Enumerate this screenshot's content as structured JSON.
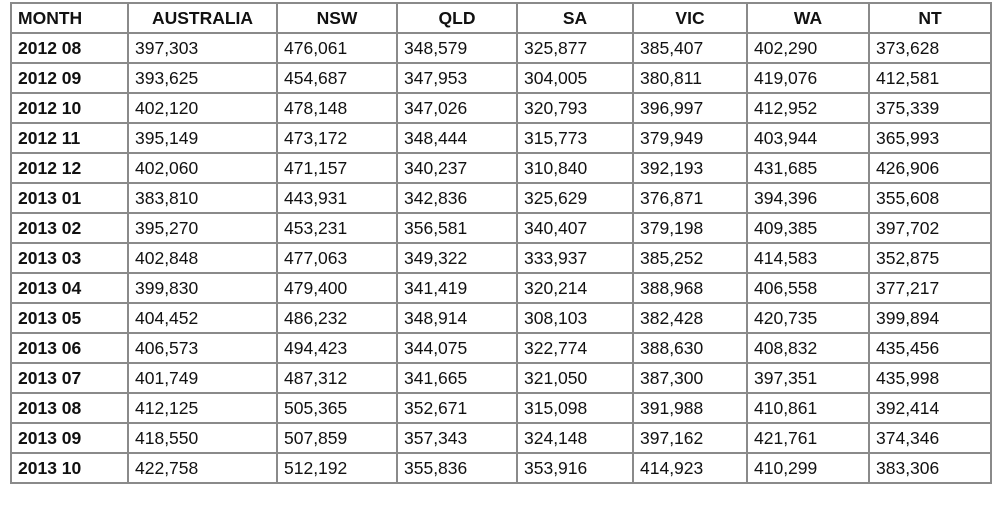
{
  "table": {
    "header": [
      "MONTH",
      "AUSTRALIA",
      "NSW",
      "QLD",
      "SA",
      "VIC",
      "WA",
      "NT"
    ],
    "rows": [
      [
        "2012 08",
        "397,303",
        "476,061",
        "348,579",
        "325,877",
        "385,407",
        "402,290",
        "373,628"
      ],
      [
        "2012 09",
        "393,625",
        "454,687",
        "347,953",
        "304,005",
        "380,811",
        "419,076",
        "412,581"
      ],
      [
        "2012 10",
        "402,120",
        "478,148",
        "347,026",
        "320,793",
        "396,997",
        "412,952",
        "375,339"
      ],
      [
        "2012 11",
        "395,149",
        "473,172",
        "348,444",
        "315,773",
        "379,949",
        "403,944",
        "365,993"
      ],
      [
        "2012 12",
        "402,060",
        "471,157",
        "340,237",
        "310,840",
        "392,193",
        "431,685",
        "426,906"
      ],
      [
        "2013 01",
        "383,810",
        "443,931",
        "342,836",
        "325,629",
        "376,871",
        "394,396",
        "355,608"
      ],
      [
        "2013 02",
        "395,270",
        "453,231",
        "356,581",
        "340,407",
        "379,198",
        "409,385",
        "397,702"
      ],
      [
        "2013 03",
        "402,848",
        "477,063",
        "349,322",
        "333,937",
        "385,252",
        "414,583",
        "352,875"
      ],
      [
        "2013 04",
        "399,830",
        "479,400",
        "341,419",
        "320,214",
        "388,968",
        "406,558",
        "377,217"
      ],
      [
        "2013 05",
        "404,452",
        "486,232",
        "348,914",
        "308,103",
        "382,428",
        "420,735",
        "399,894"
      ],
      [
        "2013 06",
        "406,573",
        "494,423",
        "344,075",
        "322,774",
        "388,630",
        "408,832",
        "435,456"
      ],
      [
        "2013 07",
        "401,749",
        "487,312",
        "341,665",
        "321,050",
        "387,300",
        "397,351",
        "435,998"
      ],
      [
        "2013 08",
        "412,125",
        "505,365",
        "352,671",
        "315,098",
        "391,988",
        "410,861",
        "392,414"
      ],
      [
        "2013 09",
        "418,550",
        "507,859",
        "357,343",
        "324,148",
        "397,162",
        "421,761",
        "374,346"
      ],
      [
        "2013 10",
        "422,758",
        "512,192",
        "355,836",
        "353,916",
        "414,923",
        "410,299",
        "383,306"
      ]
    ]
  }
}
